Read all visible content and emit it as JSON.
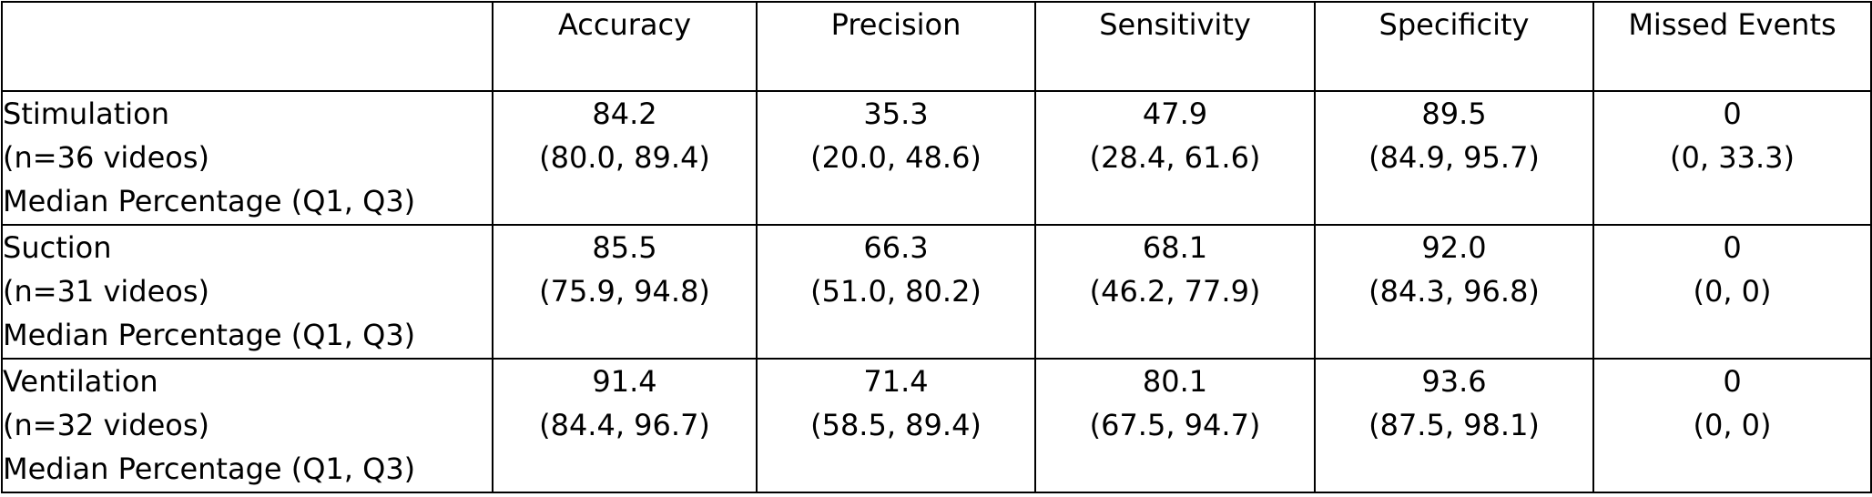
{
  "columns": [
    "",
    "Accuracy",
    "Precision",
    "Sensitivity",
    "Specificity",
    "Missed Events"
  ],
  "rows": [
    {
      "label": [
        "Stimulation",
        "(n=36 videos)",
        "Median Percentage (Q1, Q3)"
      ],
      "cells": [
        [
          "84.2",
          "(80.0, 89.4)"
        ],
        [
          "35.3",
          "(20.0, 48.6)"
        ],
        [
          "47.9",
          "(28.4, 61.6)"
        ],
        [
          "89.5",
          "(84.9, 95.7)"
        ],
        [
          "0",
          "(0, 33.3)"
        ]
      ]
    },
    {
      "label": [
        "Suction",
        "(n=31 videos)",
        "Median Percentage (Q1, Q3)"
      ],
      "cells": [
        [
          "85.5",
          "(75.9, 94.8)"
        ],
        [
          "66.3",
          "(51.0, 80.2)"
        ],
        [
          "68.1",
          "(46.2, 77.9)"
        ],
        [
          "92.0",
          "(84.3, 96.8)"
        ],
        [
          "0",
          "(0, 0)"
        ]
      ]
    },
    {
      "label": [
        "Ventilation",
        "(n=32 videos)",
        "Median Percentage (Q1, Q3)"
      ],
      "cells": [
        [
          "91.4",
          "(84.4, 96.7)"
        ],
        [
          "71.4",
          "(58.5, 89.4)"
        ],
        [
          "80.1",
          "(67.5, 94.7)"
        ],
        [
          "93.6",
          "(87.5, 98.1)"
        ],
        [
          "0",
          "(0, 0)"
        ]
      ]
    }
  ]
}
